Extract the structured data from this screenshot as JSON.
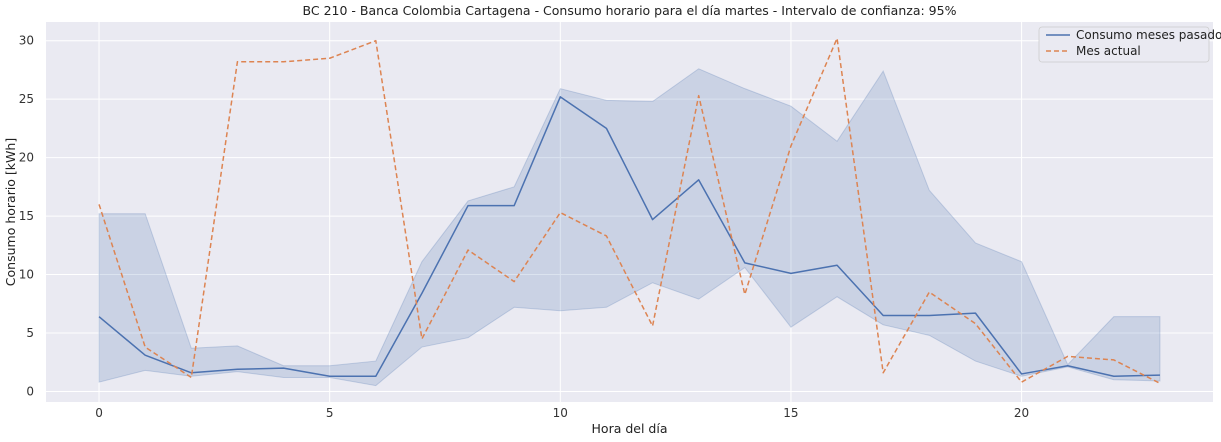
{
  "chart_data": {
    "type": "line",
    "title": "BC 210 - Banca Colombia Cartagena - Consumo horario para el día martes - Intervalo de confianza: 95%",
    "xlabel": "Hora del día",
    "ylabel": "Consumo horario [kWh]",
    "xlim": [
      -1.15,
      24.15
    ],
    "ylim": [
      -0.9,
      31.6
    ],
    "xticks": [
      0,
      5,
      10,
      15,
      20
    ],
    "yticks": [
      0,
      5,
      10,
      15,
      20,
      25,
      30
    ],
    "grid": true,
    "legend_position": "top-right",
    "x": [
      0,
      1,
      2,
      3,
      4,
      5,
      6,
      7,
      8,
      9,
      10,
      11,
      12,
      13,
      14,
      15,
      16,
      17,
      18,
      19,
      20,
      21,
      22,
      23
    ],
    "series": [
      {
        "name": "Consumo meses pasados",
        "style": "solid",
        "color": "#4c72b0",
        "values": [
          6.4,
          3.1,
          1.6,
          1.9,
          2.0,
          1.3,
          1.3,
          8.4,
          15.9,
          15.9,
          25.2,
          22.5,
          14.7,
          18.1,
          11.0,
          10.1,
          10.8,
          6.5,
          6.5,
          6.7,
          1.5,
          2.2,
          1.3,
          1.4
        ],
        "ci_upper": [
          15.2,
          15.2,
          3.7,
          3.9,
          2.2,
          2.2,
          2.6,
          11.1,
          16.3,
          17.5,
          25.9,
          24.9,
          24.8,
          27.6,
          25.9,
          24.4,
          21.4,
          27.4,
          17.2,
          12.7,
          11.1,
          2.3,
          6.4,
          6.4
        ],
        "ci_lower": [
          0.8,
          1.8,
          1.3,
          1.7,
          1.2,
          1.2,
          0.5,
          3.8,
          4.6,
          7.2,
          6.9,
          7.2,
          9.3,
          7.9,
          10.6,
          5.5,
          8.1,
          5.7,
          4.8,
          2.6,
          1.3,
          2.1,
          1.0,
          0.9
        ]
      },
      {
        "name": "Mes actual",
        "style": "dashed",
        "color": "#dd8452",
        "values": [
          16.0,
          3.8,
          1.2,
          28.2,
          28.2,
          28.5,
          30.0,
          4.5,
          12.1,
          9.4,
          15.3,
          13.3,
          5.6,
          25.3,
          8.3,
          21.0,
          30.2,
          1.6,
          8.5,
          5.8,
          0.8,
          3.0,
          2.7,
          0.7
        ]
      }
    ]
  }
}
